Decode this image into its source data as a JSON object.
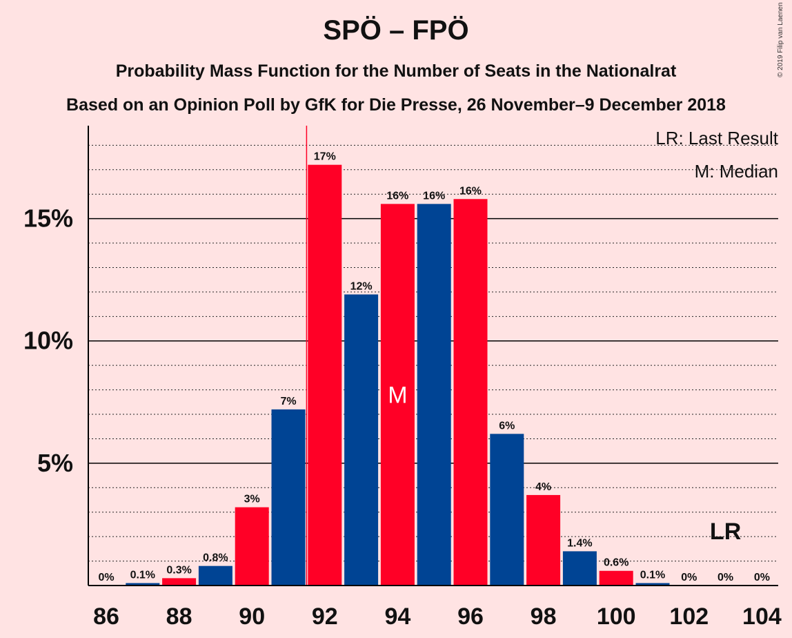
{
  "title": "SPÖ – FPÖ",
  "subtitle_1": "Probability Mass Function for the Number of Seats in the Nationalrat",
  "subtitle_2": "Based on an Opinion Poll by GfK for Die Presse, 26 November–9 December 2018",
  "copyright": "© 2019 Filip van Laenen",
  "legend": {
    "last_result": "LR: Last Result",
    "median": "M: Median"
  },
  "colors": {
    "red": "#FF0026",
    "blue": "#004494",
    "background": "#FFE3E3"
  },
  "chart_data": {
    "type": "bar",
    "x": [
      86,
      87,
      88,
      89,
      90,
      91,
      92,
      93,
      94,
      95,
      96,
      97,
      98,
      99,
      100,
      101,
      102,
      103,
      104
    ],
    "values": [
      0,
      0.1,
      0.3,
      0.8,
      3.2,
      7.2,
      17.2,
      11.9,
      15.6,
      15.6,
      15.8,
      6.2,
      3.7,
      1.4,
      0.6,
      0.1,
      0,
      0,
      0
    ],
    "labels": [
      "0%",
      "0.1%",
      "0.3%",
      "0.8%",
      "3%",
      "7%",
      "17%",
      "12%",
      "16%",
      "16%",
      "16%",
      "6%",
      "4%",
      "1.4%",
      "0.6%",
      "0.1%",
      "0%",
      "0%",
      "0%"
    ],
    "bar_colors": [
      "red",
      "blue",
      "red",
      "blue",
      "red",
      "blue",
      "red",
      "blue",
      "red",
      "blue",
      "red",
      "blue",
      "red",
      "blue",
      "red",
      "blue",
      "red",
      "blue",
      "red"
    ],
    "x_ticks": [
      86,
      88,
      90,
      92,
      94,
      96,
      98,
      100,
      102,
      104
    ],
    "y_ticks": [
      5,
      10,
      15
    ],
    "y_tick_labels": [
      "5%",
      "10%",
      "15%"
    ],
    "ylim": [
      0,
      18.8
    ],
    "minor_gridline_step": 1,
    "median": 94,
    "median_label": "M",
    "last_result": 103,
    "last_result_label": "LR",
    "last_result_line_x": 91.5
  }
}
